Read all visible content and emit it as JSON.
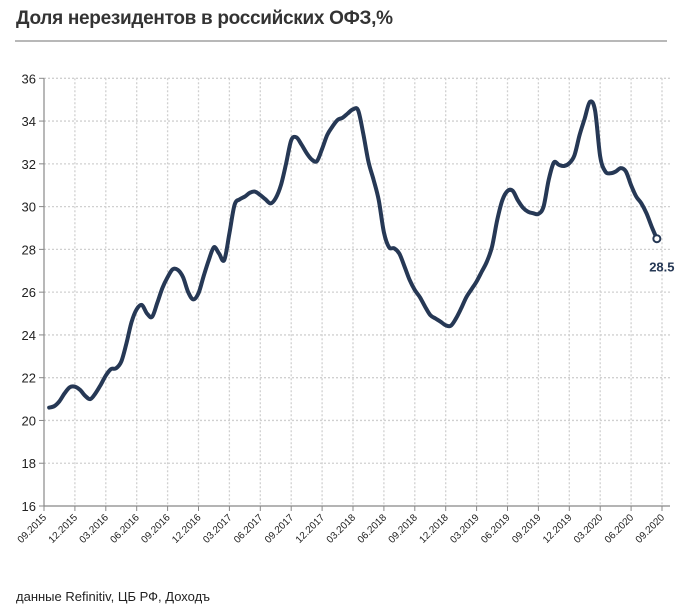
{
  "chart_data": {
    "type": "line",
    "title": "Доля нерезидентов в российских ОФЗ,%",
    "xlabel": "",
    "ylabel": "",
    "x_unit": "months since 09.2015",
    "ylim": [
      16,
      36
    ],
    "yticks": [
      16,
      18,
      20,
      22,
      24,
      26,
      28,
      30,
      32,
      34,
      36
    ],
    "xtick_labels": [
      "09.2015",
      "12.2015",
      "03.2016",
      "06.2016",
      "09.2016",
      "12.2016",
      "03.2017",
      "06.2017",
      "09.2017",
      "12.2017",
      "03.2018",
      "06.2018",
      "09.2018",
      "12.2018",
      "03.2019",
      "06.2019",
      "09.2019",
      "12.2019",
      "03.2020",
      "06.2020",
      "09.2020"
    ],
    "grid": true,
    "series": [
      {
        "name": "Доля нерезидентов",
        "color": "#263855",
        "x": [
          0.5,
          1,
          1.5,
          2,
          2.5,
          3,
          3.5,
          4,
          4.5,
          5,
          5.5,
          6,
          6.5,
          7,
          7.5,
          8,
          8.5,
          9,
          9.5,
          10,
          10.5,
          11,
          11.5,
          12,
          12.5,
          13,
          13.5,
          14,
          14.5,
          15,
          15.5,
          16,
          16.5,
          17,
          17.5,
          18,
          18.5,
          19,
          19.5,
          20,
          20.5,
          21,
          21.5,
          22,
          22.5,
          23,
          23.5,
          24,
          24.5,
          25,
          25.5,
          26,
          26.5,
          27,
          27.5,
          28,
          28.5,
          29,
          29.5,
          30,
          30.5,
          31,
          31.5,
          32,
          32.5,
          33,
          33.5,
          34,
          34.5,
          35,
          35.5,
          36,
          36.5,
          37,
          37.5,
          38,
          38.5,
          39,
          39.5,
          40,
          40.5,
          41,
          41.5,
          42,
          42.5,
          43,
          43.5,
          44,
          44.5,
          45,
          45.5,
          46,
          46.5,
          47,
          47.5,
          48,
          48.5,
          49,
          49.5,
          50,
          50.5,
          51,
          51.5,
          52,
          52.5,
          53,
          53.5,
          54,
          54.5,
          55,
          55.5,
          56,
          56.5,
          57,
          57.5,
          58,
          58.5,
          59,
          59.5
        ],
        "values": [
          20.6,
          20.67,
          20.9,
          21.27,
          21.55,
          21.58,
          21.43,
          21.15,
          21.0,
          21.27,
          21.66,
          22.1,
          22.4,
          22.44,
          22.75,
          23.6,
          24.6,
          25.2,
          25.4,
          25.0,
          24.85,
          25.5,
          26.2,
          26.7,
          27.07,
          27.04,
          26.7,
          26.0,
          25.66,
          25.95,
          26.75,
          27.5,
          28.1,
          27.8,
          27.5,
          28.75,
          30.08,
          30.34,
          30.47,
          30.65,
          30.7,
          30.54,
          30.34,
          30.15,
          30.4,
          31.0,
          32.0,
          33.1,
          33.24,
          32.9,
          32.5,
          32.2,
          32.13,
          32.7,
          33.35,
          33.74,
          34.05,
          34.16,
          34.36,
          34.55,
          34.5,
          33.4,
          32.1,
          31.25,
          30.3,
          28.8,
          28.1,
          28.05,
          27.8,
          27.2,
          26.57,
          26.1,
          25.76,
          25.32,
          24.93,
          24.77,
          24.62,
          24.45,
          24.43,
          24.77,
          25.24,
          25.76,
          26.13,
          26.5,
          26.96,
          27.43,
          28.13,
          29.37,
          30.3,
          30.73,
          30.74,
          30.3,
          29.95,
          29.76,
          29.69,
          29.66,
          30.0,
          31.25,
          32.06,
          31.95,
          31.9,
          32.03,
          32.4,
          33.35,
          34.13,
          34.9,
          34.5,
          32.34,
          31.64,
          31.56,
          31.64,
          31.8,
          31.64,
          31.0,
          30.47,
          30.15,
          29.68,
          29.06,
          28.5
        ]
      }
    ],
    "annotations": [
      {
        "text": "28.5",
        "x": 59.5,
        "y": 28.5
      }
    ]
  },
  "source": "данные  Refinitiv, ЦБ РФ, Доходъ"
}
